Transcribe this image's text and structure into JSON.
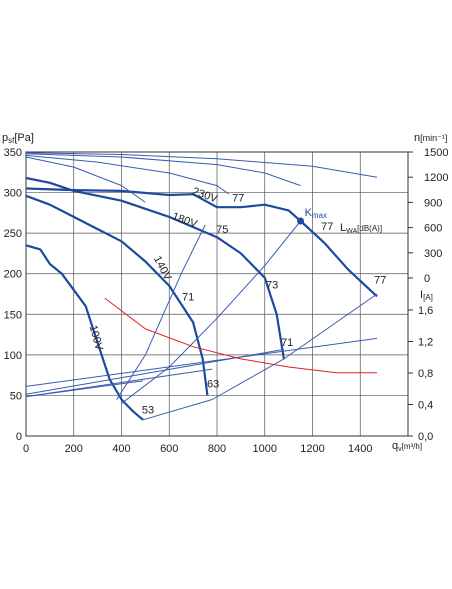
{
  "chart_data": {
    "type": "line",
    "y_label": "p",
    "y_label_sub": "sf",
    "y_label_unit": "[Pa]",
    "y2_label": "n",
    "y2_label_unit": "[min⁻¹]",
    "y3_label": "I",
    "y3_label_unit": "[A]",
    "x_label": "q",
    "x_label_sub": "v",
    "x_label_unit": "[m³/h]",
    "noise_label": "L",
    "noise_label_sub": "WA",
    "noise_label_unit": "[dB(A)]",
    "xlim": [
      0,
      1600
    ],
    "xticks": [
      0,
      200,
      400,
      600,
      800,
      1000,
      1200,
      1400
    ],
    "ylim": [
      0,
      350
    ],
    "yticks": [
      0,
      50,
      100,
      150,
      200,
      250,
      300,
      350
    ],
    "y2lim": [
      0,
      1500
    ],
    "y2ticks": [
      0,
      300,
      600,
      900,
      1200,
      1500
    ],
    "y3lim": [
      0,
      1.6
    ],
    "y3ticks": [
      {
        "value": 0,
        "label": "0,0"
      },
      {
        "value": 0.4,
        "label": "0,4"
      },
      {
        "value": 0.8,
        "label": "0,8"
      },
      {
        "value": 1.2,
        "label": "1,2"
      },
      {
        "value": 1.6,
        "label": "1,6"
      }
    ],
    "grid": true,
    "series": [
      {
        "color": "#1d4a9e",
        "line_width": 2.2,
        "x": [
          0,
          200,
          400,
          600,
          700,
          800,
          900,
          1000,
          1100,
          1150,
          1250,
          1350,
          1470
        ],
        "values": [
          305,
          303,
          302,
          297,
          298,
          282,
          282,
          285,
          278,
          265,
          238,
          205,
          172
        ]
      },
      {
        "color": "#1d4a9e",
        "line_width": 2.2,
        "x": [
          0,
          100,
          200,
          400,
          600,
          800,
          900,
          1000,
          1050,
          1080
        ],
        "values": [
          318,
          312,
          302,
          290,
          270,
          245,
          225,
          195,
          150,
          95
        ]
      },
      {
        "color": "#1d4a9e",
        "line_width": 2.2,
        "x": [
          0,
          100,
          200,
          300,
          400,
          500,
          600,
          700,
          740,
          760
        ],
        "values": [
          296,
          285,
          270,
          255,
          240,
          215,
          185,
          140,
          95,
          50
        ]
      },
      {
        "color": "#1d4a9e",
        "line_width": 2.2,
        "x": [
          0,
          60,
          100,
          150,
          250,
          300,
          350,
          400,
          450,
          490
        ],
        "values": [
          235,
          230,
          212,
          200,
          160,
          115,
          70,
          45,
          30,
          20
        ]
      },
      {
        "color": "#3a5cb0",
        "line_width": 1,
        "axis": "y2",
        "x": [
          0,
          400,
          800,
          1200,
          1470
        ],
        "values": [
          1490,
          1470,
          1420,
          1330,
          1200
        ]
      },
      {
        "color": "#3a5cb0",
        "line_width": 1,
        "axis": "y2",
        "x": [
          0,
          400,
          800,
          1000,
          1150
        ],
        "values": [
          1480,
          1440,
          1350,
          1250,
          1100
        ]
      },
      {
        "color": "#3a5cb0",
        "line_width": 1,
        "axis": "y2",
        "x": [
          0,
          300,
          600,
          800,
          850
        ],
        "values": [
          1460,
          1380,
          1250,
          1100,
          1000
        ]
      },
      {
        "color": "#3a5cb0",
        "line_width": 1,
        "axis": "y2",
        "x": [
          0,
          200,
          400,
          500
        ],
        "values": [
          1440,
          1320,
          1100,
          900
        ]
      },
      {
        "color": "#3a5cb0",
        "line_width": 1,
        "axis": "y3",
        "x": [
          0,
          1470
        ],
        "values": [
          0.63,
          1.24
        ]
      },
      {
        "color": "#3a5cb0",
        "line_width": 1,
        "axis": "y3",
        "x": [
          0,
          1080
        ],
        "values": [
          0.53,
          1.1
        ]
      },
      {
        "color": "#3a5cb0",
        "line_width": 1,
        "axis": "y3",
        "x": [
          0,
          780
        ],
        "values": [
          0.5,
          0.85
        ]
      },
      {
        "color": "#3a5cb0",
        "line_width": 1,
        "axis": "y3",
        "x": [
          0,
          490
        ],
        "values": [
          0.5,
          0.7
        ]
      },
      {
        "color": "#e02020",
        "line_width": 1,
        "x": [
          330,
          500,
          700,
          900,
          1100,
          1300,
          1470
        ],
        "values": [
          170,
          132,
          110,
          95,
          85,
          78,
          78
        ]
      },
      {
        "color": "#3a5cb0",
        "line_width": 1,
        "x": [
          490,
          780,
          1080,
          1470
        ],
        "values": [
          20,
          45,
          95,
          175
        ]
      },
      {
        "color": "#3a5cb0",
        "line_width": 1,
        "x": [
          400,
          600,
          800,
          1000,
          1150
        ],
        "values": [
          40,
          85,
          145,
          210,
          265
        ]
      },
      {
        "color": "#3a5cb0",
        "line_width": 1,
        "x": [
          380,
          500,
          650,
          750
        ],
        "values": [
          45,
          100,
          200,
          260
        ]
      }
    ],
    "annotations": [
      {
        "text": "230V",
        "x": 745,
        "y": 293
      },
      {
        "text": "180V",
        "x": 660,
        "y": 262
      },
      {
        "text": "140V",
        "x": 560,
        "y": 205
      },
      {
        "text": "100V",
        "x": 280,
        "y": 120
      },
      {
        "text": "77",
        "x": 889,
        "y": 289
      },
      {
        "text": "75",
        "x": 822,
        "y": 250
      },
      {
        "text": "73",
        "x": 1031,
        "y": 182
      },
      {
        "text": "71",
        "x": 679,
        "y": 167
      },
      {
        "text": "71",
        "x": 1094,
        "y": 111
      },
      {
        "text": "63",
        "x": 784,
        "y": 60
      },
      {
        "text": "53",
        "x": 511,
        "y": 28
      },
      {
        "text": "77",
        "x": 1262,
        "y": 254
      },
      {
        "text": "77",
        "x": 1484,
        "y": 188
      }
    ],
    "kmax": {
      "x": 1150,
      "y": 265,
      "label": "K",
      "label_sub": "max"
    }
  }
}
